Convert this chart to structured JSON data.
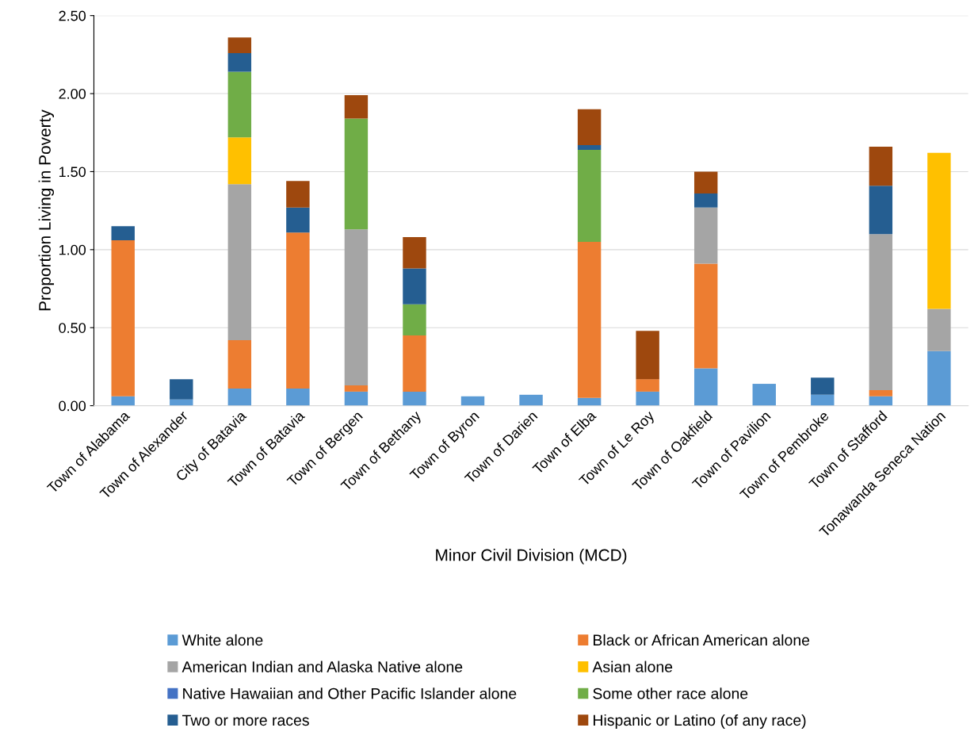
{
  "chart_data": {
    "type": "bar",
    "stacked": true,
    "xlabel": "Minor Civil Division (MCD)",
    "ylabel": "Proportion Living in Poverty",
    "categories": [
      "Town of Alabama",
      "Town of Alexander",
      "City of Batavia",
      "Town of Batavia",
      "Town of Bergen",
      "Town of Bethany",
      "Town of Byron",
      "Town of Darien",
      "Town of Elba",
      "Town of Le Roy",
      "Town of Oakfield",
      "Town of Pavilion",
      "Town of Pembroke",
      "Town of Stafford",
      "Tonawanda Seneca Nation"
    ],
    "series": [
      {
        "name": "White alone",
        "color": "#5b9bd5",
        "values": [
          0.06,
          0.04,
          0.11,
          0.11,
          0.09,
          0.09,
          0.06,
          0.07,
          0.05,
          0.09,
          0.24,
          0.14,
          0.07,
          0.06,
          0.35
        ]
      },
      {
        "name": "Black or African American alone",
        "color": "#ed7d31",
        "values": [
          1.0,
          null,
          0.31,
          1.0,
          0.04,
          0.36,
          null,
          null,
          1.0,
          0.08,
          0.67,
          null,
          null,
          0.04,
          null
        ]
      },
      {
        "name": "American Indian and Alaska Native alone",
        "color": "#a5a5a5",
        "values": [
          null,
          null,
          1.0,
          null,
          1.0,
          null,
          null,
          null,
          null,
          null,
          0.36,
          null,
          null,
          1.0,
          0.27
        ]
      },
      {
        "name": "Asian alone",
        "color": "#ffc000",
        "values": [
          null,
          null,
          0.3,
          null,
          null,
          null,
          null,
          null,
          null,
          null,
          null,
          null,
          null,
          null,
          1.0
        ]
      },
      {
        "name": "Native Hawaiian and Other Pacific Islander alone",
        "color": "#4472c4",
        "values": [
          null,
          null,
          null,
          null,
          null,
          null,
          null,
          null,
          null,
          null,
          null,
          null,
          null,
          null,
          null
        ]
      },
      {
        "name": "Some other race alone",
        "color": "#70ad47",
        "values": [
          null,
          null,
          0.42,
          null,
          0.71,
          0.2,
          null,
          null,
          0.59,
          null,
          null,
          null,
          null,
          null,
          null
        ]
      },
      {
        "name": "Two or more races",
        "color": "#255e91",
        "values": [
          0.09,
          0.13,
          0.12,
          0.16,
          null,
          0.23,
          null,
          null,
          0.03,
          null,
          0.09,
          null,
          0.11,
          0.31,
          null
        ]
      },
      {
        "name": "Hispanic or Latino (of any race)",
        "color": "#9e480e",
        "values": [
          null,
          null,
          0.1,
          0.17,
          0.15,
          0.2,
          null,
          null,
          0.23,
          0.31,
          0.14,
          null,
          null,
          0.25,
          null
        ]
      }
    ],
    "ylim": [
      0,
      2.5
    ],
    "yticks": [
      {
        "value": 0,
        "label": "0.00"
      },
      {
        "value": 0.5,
        "label": "0.50"
      },
      {
        "value": 1,
        "label": "1.00"
      },
      {
        "value": 1.5,
        "label": "1.50"
      },
      {
        "value": 2,
        "label": "2.00"
      },
      {
        "value": 2.5,
        "label": "2.50"
      }
    ],
    "grid": "y",
    "legend": "bottom"
  }
}
